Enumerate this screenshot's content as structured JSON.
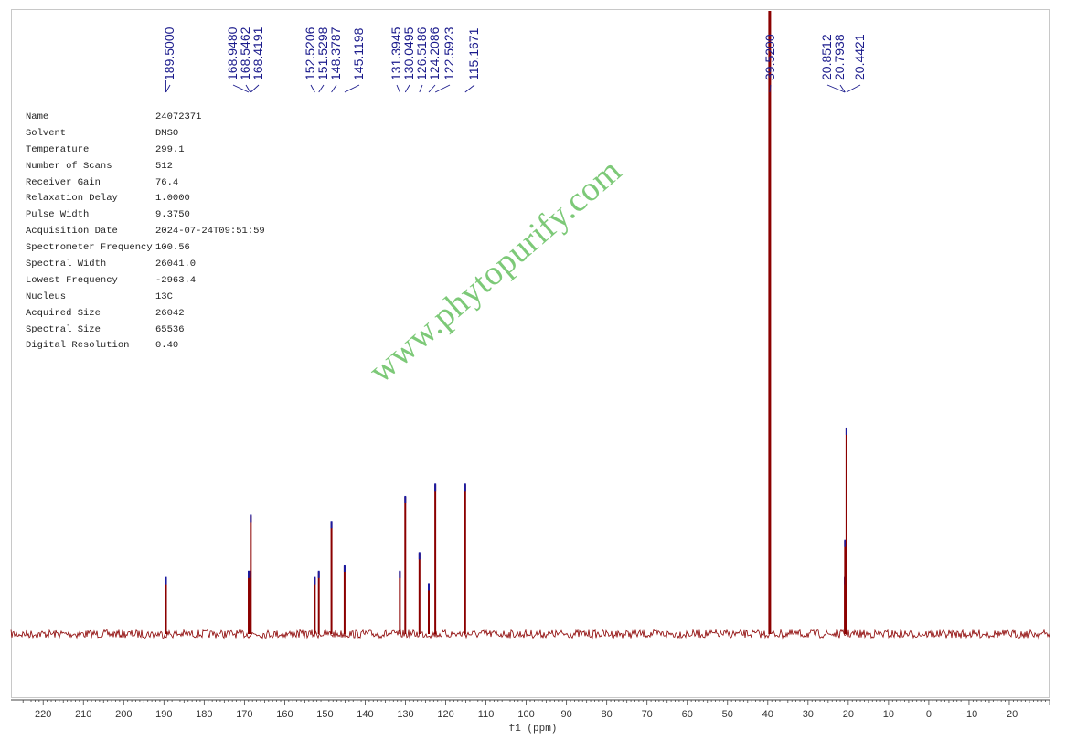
{
  "parameters": [
    {
      "name": "Name",
      "value": "24072371"
    },
    {
      "name": "Solvent",
      "value": "DMSO"
    },
    {
      "name": "Temperature",
      "value": "299.1"
    },
    {
      "name": "Number of Scans",
      "value": "512"
    },
    {
      "name": "Receiver Gain",
      "value": "76.4"
    },
    {
      "name": "Relaxation Delay",
      "value": "1.0000"
    },
    {
      "name": "Pulse Width",
      "value": "9.3750"
    },
    {
      "name": "Acquisition Date",
      "value": "2024-07-24T09:51:59"
    },
    {
      "name": "Spectrometer Frequency",
      "value": "100.56"
    },
    {
      "name": "Spectral Width",
      "value": "26041.0"
    },
    {
      "name": "Lowest Frequency",
      "value": "-2963.4"
    },
    {
      "name": "Nucleus",
      "value": "13C"
    },
    {
      "name": "Acquired Size",
      "value": "26042"
    },
    {
      "name": "Spectral Size",
      "value": "65536"
    },
    {
      "name": "Digital Resolution",
      "value": "0.40"
    }
  ],
  "watermark": "www.phytopurify.com",
  "colors": {
    "spectrum": "#8b0000",
    "peak_marker": "#1a1aa0",
    "peak_label": "#1a1a8c",
    "watermark": "#6fc46a"
  },
  "chart_data": {
    "type": "line",
    "xlabel": "f1 (ppm)",
    "xlim": [
      228,
      -30
    ],
    "x_reversed": true,
    "xticks": [
      220,
      210,
      200,
      190,
      180,
      170,
      160,
      150,
      140,
      130,
      120,
      110,
      100,
      90,
      80,
      70,
      60,
      50,
      40,
      30,
      20,
      10,
      0,
      -10,
      -20
    ],
    "peaks": [
      {
        "ppm": 189.5,
        "label": "189.5000",
        "intensity": 0.09
      },
      {
        "ppm": 168.948,
        "label": "168.9480",
        "intensity": 0.1
      },
      {
        "ppm": 168.5462,
        "label": "168.5462",
        "intensity": 0.1
      },
      {
        "ppm": 168.4191,
        "label": "168.4191",
        "intensity": 0.19
      },
      {
        "ppm": 152.5206,
        "label": "152.5206",
        "intensity": 0.09
      },
      {
        "ppm": 151.5298,
        "label": "151.5298",
        "intensity": 0.1
      },
      {
        "ppm": 148.3787,
        "label": "148.3787",
        "intensity": 0.18
      },
      {
        "ppm": 145.1198,
        "label": "145.1198",
        "intensity": 0.11
      },
      {
        "ppm": 131.3945,
        "label": "131.3945",
        "intensity": 0.1
      },
      {
        "ppm": 130.0495,
        "label": "130.0495",
        "intensity": 0.22
      },
      {
        "ppm": 126.5186,
        "label": "126.5186",
        "intensity": 0.13
      },
      {
        "ppm": 124.2086,
        "label": "124.2086",
        "intensity": 0.08
      },
      {
        "ppm": 122.5923,
        "label": "122.5923",
        "intensity": 0.24
      },
      {
        "ppm": 115.1671,
        "label": "115.1671",
        "intensity": 0.24
      },
      {
        "ppm": 39.52,
        "label": "39.5200",
        "intensity": 1.0
      },
      {
        "ppm": 20.8512,
        "label": "20.8512",
        "intensity": 0.09
      },
      {
        "ppm": 20.7938,
        "label": "20.7938",
        "intensity": 0.15
      },
      {
        "ppm": 20.4421,
        "label": "20.4421",
        "intensity": 0.33
      }
    ]
  }
}
